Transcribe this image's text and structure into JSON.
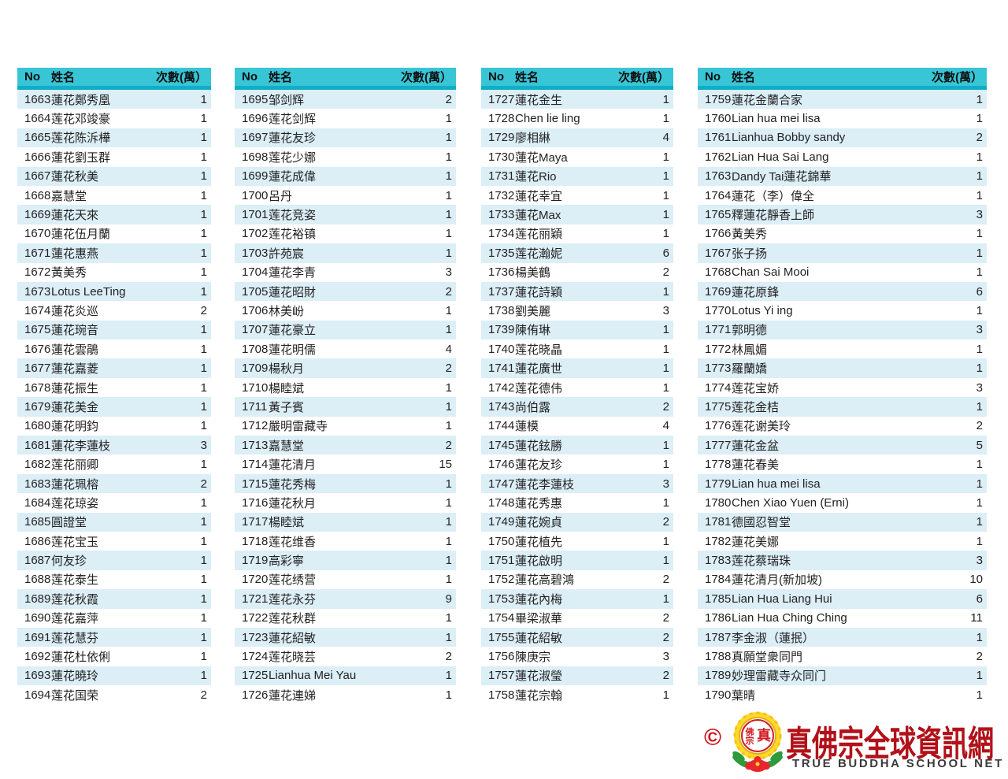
{
  "header_labels": {
    "no": "No",
    "name": "姓名",
    "count": "次數(萬）"
  },
  "tables": [
    {
      "rows": [
        {
          "no": "1663",
          "name": "蓮花鄭秀凰",
          "count": "1"
        },
        {
          "no": "1664",
          "name": "莲花邓竣豪",
          "count": "1"
        },
        {
          "no": "1665",
          "name": "莲花陈泝樺",
          "count": "1"
        },
        {
          "no": "1666",
          "name": "蓮花劉玉群",
          "count": "1"
        },
        {
          "no": "1667",
          "name": "蓮花秋美",
          "count": "1"
        },
        {
          "no": "1668",
          "name": "嘉慧堂",
          "count": "1"
        },
        {
          "no": "1669",
          "name": "蓮花天來",
          "count": "1"
        },
        {
          "no": "1670",
          "name": "蓮花伍月蘭",
          "count": "1"
        },
        {
          "no": "1671",
          "name": "蓮花惠燕",
          "count": "1"
        },
        {
          "no": "1672",
          "name": "黃美秀",
          "count": "1"
        },
        {
          "no": "1673",
          "name": "Lotus LeeTing",
          "count": "1"
        },
        {
          "no": "1674",
          "name": "蓮花炎巡",
          "count": "2"
        },
        {
          "no": "1675",
          "name": "蓮花琬音",
          "count": "1"
        },
        {
          "no": "1676",
          "name": "蓮花雲鵑",
          "count": "1"
        },
        {
          "no": "1677",
          "name": "蓮花嘉菱",
          "count": "1"
        },
        {
          "no": "1678",
          "name": "蓮花振生",
          "count": "1"
        },
        {
          "no": "1679",
          "name": "蓮花美金",
          "count": "1"
        },
        {
          "no": "1680",
          "name": "蓮花明鈞",
          "count": "1"
        },
        {
          "no": "1681",
          "name": "蓮花李蓮枝",
          "count": "3"
        },
        {
          "no": "1682",
          "name": "莲花丽卿",
          "count": "1"
        },
        {
          "no": "1683",
          "name": "蓮花珮榕",
          "count": "2"
        },
        {
          "no": "1684",
          "name": "莲花琼姿",
          "count": "1"
        },
        {
          "no": "1685",
          "name": "圓證堂",
          "count": "1"
        },
        {
          "no": "1686",
          "name": "莲花宝玉",
          "count": "1"
        },
        {
          "no": "1687",
          "name": "何友珍",
          "count": "1"
        },
        {
          "no": "1688",
          "name": "莲花泰生",
          "count": "1"
        },
        {
          "no": "1689",
          "name": "莲花秋霞",
          "count": "1"
        },
        {
          "no": "1690",
          "name": "莲花嘉萍",
          "count": "1"
        },
        {
          "no": "1691",
          "name": "莲花慧芬",
          "count": "1"
        },
        {
          "no": "1692",
          "name": "蓮花杜依俐",
          "count": "1"
        },
        {
          "no": "1693",
          "name": "蓮花曉玲",
          "count": "1"
        },
        {
          "no": "1694",
          "name": "莲花国荣",
          "count": "2"
        }
      ]
    },
    {
      "rows": [
        {
          "no": "1695",
          "name": "邹剑辉",
          "count": "2"
        },
        {
          "no": "1696",
          "name": "莲花剑辉",
          "count": "1"
        },
        {
          "no": "1697",
          "name": "蓮花友珍",
          "count": "1"
        },
        {
          "no": "1698",
          "name": "莲花少娜",
          "count": "1"
        },
        {
          "no": "1699",
          "name": "蓮花成偉",
          "count": "1"
        },
        {
          "no": "1700",
          "name": "呂丹",
          "count": "1"
        },
        {
          "no": "1701",
          "name": "莲花竞姿",
          "count": "1"
        },
        {
          "no": "1702",
          "name": "莲花裕镇",
          "count": "1"
        },
        {
          "no": "1703",
          "name": "許苑宸",
          "count": "1"
        },
        {
          "no": "1704",
          "name": "蓮花李青",
          "count": "3"
        },
        {
          "no": "1705",
          "name": "蓮花昭財",
          "count": "2"
        },
        {
          "no": "1706",
          "name": "林美岎",
          "count": "1"
        },
        {
          "no": "1707",
          "name": "蓮花豪立",
          "count": "1"
        },
        {
          "no": "1708",
          "name": "蓮花明儒",
          "count": "4"
        },
        {
          "no": "1709",
          "name": "楊秋月",
          "count": "2"
        },
        {
          "no": "1710",
          "name": "楊睦斌",
          "count": "1"
        },
        {
          "no": "1711",
          "name": "黃子賓",
          "count": "1"
        },
        {
          "no": "1712",
          "name": "嚴明雷藏寺",
          "count": "1"
        },
        {
          "no": "1713",
          "name": "嘉慧堂",
          "count": "2"
        },
        {
          "no": "1714",
          "name": "蓮花清月",
          "count": "15"
        },
        {
          "no": "1715",
          "name": "蓮花秀梅",
          "count": "1"
        },
        {
          "no": "1716",
          "name": "蓮花秋月",
          "count": "1"
        },
        {
          "no": "1717",
          "name": "楊睦斌",
          "count": "1"
        },
        {
          "no": "1718",
          "name": "莲花维香",
          "count": "1"
        },
        {
          "no": "1719",
          "name": "高彩寧",
          "count": "1"
        },
        {
          "no": "1720",
          "name": "莲花绣营",
          "count": "1"
        },
        {
          "no": "1721",
          "name": "莲花永芬",
          "count": "9"
        },
        {
          "no": "1722",
          "name": "莲花秋群",
          "count": "1"
        },
        {
          "no": "1723",
          "name": "蓮花紹敏",
          "count": "1"
        },
        {
          "no": "1724",
          "name": "莲花晓芸",
          "count": "2"
        },
        {
          "no": "1725",
          "name": "Lianhua Mei Yau",
          "count": "1"
        },
        {
          "no": "1726",
          "name": "蓮花連娣",
          "count": "1"
        }
      ]
    },
    {
      "rows": [
        {
          "no": "1727",
          "name": "蓮花金生",
          "count": "1"
        },
        {
          "no": "1728",
          "name": "Chen lie ling",
          "count": "1"
        },
        {
          "no": "1729",
          "name": "廖相綝",
          "count": "4"
        },
        {
          "no": "1730",
          "name": "蓮花Maya",
          "count": "1"
        },
        {
          "no": "1731",
          "name": "蓮花Rio",
          "count": "1"
        },
        {
          "no": "1732",
          "name": "蓮花幸宜",
          "count": "1"
        },
        {
          "no": "1733",
          "name": "蓮花Max",
          "count": "1"
        },
        {
          "no": "1734",
          "name": "莲花丽穎",
          "count": "1"
        },
        {
          "no": "1735",
          "name": "莲花瀚妮",
          "count": "6"
        },
        {
          "no": "1736",
          "name": "楊美鶴",
          "count": "2"
        },
        {
          "no": "1737",
          "name": "蓮花詩穎",
          "count": "1"
        },
        {
          "no": "1738",
          "name": "劉美麗",
          "count": "3"
        },
        {
          "no": "1739",
          "name": "陳侑琳",
          "count": "1"
        },
        {
          "no": "1740",
          "name": "莲花晓晶",
          "count": "1"
        },
        {
          "no": "1741",
          "name": "蓮花廣世",
          "count": "1"
        },
        {
          "no": "1742",
          "name": "莲花德伟",
          "count": "1"
        },
        {
          "no": "1743",
          "name": "尚伯露",
          "count": "2"
        },
        {
          "no": "1744",
          "name": "蓮模",
          "count": "4"
        },
        {
          "no": "1745",
          "name": "蓮花鉉勝",
          "count": "1"
        },
        {
          "no": "1746",
          "name": "蓮花友珍",
          "count": "1"
        },
        {
          "no": "1747",
          "name": "蓮花李蓮枝",
          "count": "3"
        },
        {
          "no": "1748",
          "name": "蓮花秀惠",
          "count": "1"
        },
        {
          "no": "1749",
          "name": "蓮花婉貞",
          "count": "2"
        },
        {
          "no": "1750",
          "name": "蓮花植先",
          "count": "1"
        },
        {
          "no": "1751",
          "name": "蓮花啟明",
          "count": "1"
        },
        {
          "no": "1752",
          "name": "蓮花高碧鴻",
          "count": "2"
        },
        {
          "no": "1753",
          "name": "蓮花內梅",
          "count": "1"
        },
        {
          "no": "1754",
          "name": "畢梁淑華",
          "count": "2"
        },
        {
          "no": "1755",
          "name": "蓮花紹敏",
          "count": "2"
        },
        {
          "no": "1756",
          "name": "陳庚宗",
          "count": "3"
        },
        {
          "no": "1757",
          "name": "蓮花淑瑩",
          "count": "2"
        },
        {
          "no": "1758",
          "name": "蓮花宗翰",
          "count": "1"
        }
      ]
    },
    {
      "rows": [
        {
          "no": "1759",
          "name": "蓮花金蘭合家",
          "count": "1"
        },
        {
          "no": "1760",
          "name": "Lian hua mei lisa",
          "count": "1"
        },
        {
          "no": "1761",
          "name": "Lianhua Bobby sandy",
          "count": "2"
        },
        {
          "no": "1762",
          "name": "Lian Hua Sai Lang",
          "count": "1"
        },
        {
          "no": "1763",
          "name": "Dandy Tai蓮花錦華",
          "count": "1"
        },
        {
          "no": "1764",
          "name": "蓮花（李）偉全",
          "count": "1"
        },
        {
          "no": "1765",
          "name": "釋蓮花靜香上師",
          "count": "3"
        },
        {
          "no": "1766",
          "name": "黃美秀",
          "count": "1"
        },
        {
          "no": "1767",
          "name": "张子扬",
          "count": "1"
        },
        {
          "no": "1768",
          "name": "Chan Sai Mooi",
          "count": "1"
        },
        {
          "no": "1769",
          "name": "蓮花原鋒",
          "count": "6"
        },
        {
          "no": "1770",
          "name": "Lotus Yi ing",
          "count": "1"
        },
        {
          "no": "1771",
          "name": "郭明德",
          "count": "3"
        },
        {
          "no": "1772",
          "name": "林鳳媚",
          "count": "1"
        },
        {
          "no": "1773",
          "name": "羅蘭嬌",
          "count": "1"
        },
        {
          "no": "1774",
          "name": "莲花宝娇",
          "count": "3"
        },
        {
          "no": "1775",
          "name": "莲花金桔",
          "count": "1"
        },
        {
          "no": "1776",
          "name": "莲花谢美玲",
          "count": "2"
        },
        {
          "no": "1777",
          "name": "蓮花金盆",
          "count": "5"
        },
        {
          "no": "1778",
          "name": "蓮花春美",
          "count": "1"
        },
        {
          "no": "1779",
          "name": "Lian hua mei lisa",
          "count": "1"
        },
        {
          "no": "1780",
          "name": "Chen Xiao Yuen (Erni)",
          "count": "1"
        },
        {
          "no": "1781",
          "name": "德國忍智堂",
          "count": "1"
        },
        {
          "no": "1782",
          "name": "蓮花美娜",
          "count": "1"
        },
        {
          "no": "1783",
          "name": "莲花蔡瑞珠",
          "count": "3"
        },
        {
          "no": "1784",
          "name": "蓮花清月(新加坡)",
          "count": "10"
        },
        {
          "no": "1785",
          "name": "Lian Hua Liang Hui",
          "count": "6"
        },
        {
          "no": "1786",
          "name": "Lian Hua Ching Ching",
          "count": "11"
        },
        {
          "no": "1787",
          "name": "李金淑（蓮抿）",
          "count": "1"
        },
        {
          "no": "1788",
          "name": "真願堂衆同門",
          "count": "2"
        },
        {
          "no": "1789",
          "name": "妙理雷藏寺众同门",
          "count": "1"
        },
        {
          "no": "1790",
          "name": "葉晴",
          "count": "1"
        }
      ]
    }
  ],
  "footer": {
    "copyright": "©",
    "emblem_text": "真佛宗",
    "site_title": "真佛宗全球資訊網",
    "site_subtitle": "TRUE BUDDHA SCHOOL NET"
  },
  "colors": {
    "header_bg": "#38c5d6",
    "header_border": "#10aec6",
    "row_shaded": "#dceef6",
    "logo_red": "#b1121a",
    "copyright_red": "#cc1620",
    "emblem_yellow": "#ffd92b",
    "emblem_green": "#2e9b3a"
  }
}
